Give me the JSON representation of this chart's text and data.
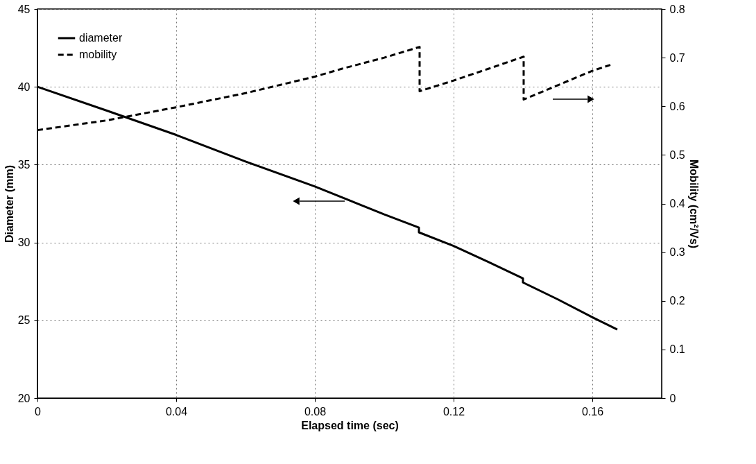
{
  "chart_data": {
    "type": "line",
    "xlabel": "Elapsed time (sec)",
    "ylabel": "Diameter (mm)",
    "y2label": "Mobility (cm²/Vs)",
    "xlim": [
      0,
      0.18
    ],
    "xticks": [
      0,
      0.04,
      0.08,
      0.12,
      0.16
    ],
    "ylim": [
      20,
      45
    ],
    "yticks": [
      20,
      25,
      30,
      35,
      40,
      45
    ],
    "y2lim": [
      0,
      0.8
    ],
    "y2ticks": [
      0,
      0.1,
      0.2,
      0.3,
      0.4,
      0.5,
      0.6,
      0.7,
      0.8
    ],
    "grid": true,
    "legend": "top left",
    "marker": "none",
    "series": [
      {
        "name": "diameter",
        "color": "#000000",
        "line_style": "solid",
        "x": [
          0,
          0.02,
          0.04,
          0.06,
          0.08,
          0.1,
          0.11,
          0.11,
          0.12,
          0.13,
          0.14,
          0.14,
          0.15,
          0.16,
          0.1672
        ],
        "values": [
          40,
          38.47,
          36.91,
          35.2,
          33.6,
          31.8,
          30.96,
          30.65,
          29.78,
          28.75,
          27.69,
          27.43,
          26.35,
          25.2,
          24.41
        ]
      },
      {
        "name": "mobility",
        "color": "#000000",
        "line_style": "dashed",
        "axis": "y2",
        "x": [
          0,
          0.02,
          0.04,
          0.06,
          0.08,
          0.0877,
          0.1,
          0.1102,
          0.1102,
          0.12,
          0.13,
          0.1402,
          0.1402,
          0.16,
          0.1652
        ],
        "values": [
          0.551,
          0.571,
          0.598,
          0.627,
          0.661,
          0.677,
          0.7,
          0.722,
          0.631,
          0.653,
          0.677,
          0.702,
          0.614,
          0.673,
          0.685
        ]
      }
    ]
  }
}
